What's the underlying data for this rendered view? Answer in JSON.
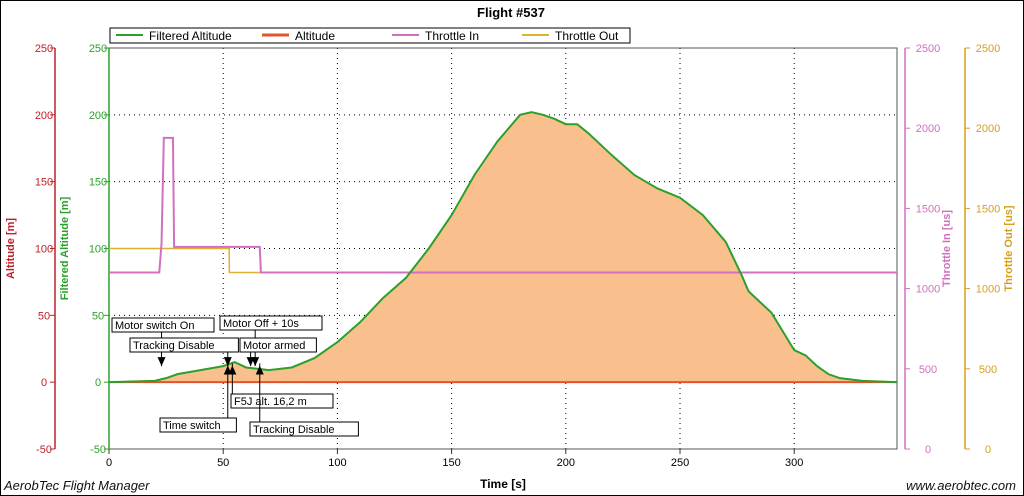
{
  "footer": {
    "left": "AerobTec Flight Manager",
    "right": "www.aerobtec.com"
  },
  "chart_data": {
    "type": "line",
    "title": "Flight #537",
    "xlabel": "Time [s]",
    "xlim": [
      0,
      345
    ],
    "xticks": [
      0,
      50,
      100,
      150,
      200,
      250,
      300
    ],
    "grid": true,
    "legend": {
      "placement": "top",
      "entries": [
        {
          "name": "Filtered Altitude",
          "color": "#2ca02c"
        },
        {
          "name": "Altitude",
          "color": "#e2542b"
        },
        {
          "name": "Throttle In",
          "color": "#d070c0"
        },
        {
          "name": "Throttle Out",
          "color": "#e0b030"
        }
      ]
    },
    "axes": [
      {
        "label": "Altitude [m]",
        "color": "#c0202a",
        "range": [
          -50,
          250
        ],
        "ticks": [
          -50,
          0,
          50,
          100,
          150,
          200,
          250
        ]
      },
      {
        "label": "Filtered Altitude [m]",
        "color": "#2ca02c",
        "range": [
          -50,
          250
        ],
        "ticks": [
          -50,
          0,
          50,
          100,
          150,
          200,
          250
        ]
      },
      {
        "label": "Throttle In [us]",
        "color": "#d070c0",
        "range": [
          0,
          2500
        ],
        "ticks": [
          0,
          500,
          1000,
          1500,
          2000,
          2500
        ]
      },
      {
        "label": "Throttle Out [us]",
        "color": "#d4a020",
        "range": [
          0,
          2500
        ],
        "ticks": [
          0,
          500,
          1000,
          1500,
          2000,
          2500
        ]
      }
    ],
    "series": [
      {
        "name": "Filtered Altitude",
        "x": [
          0,
          20,
          25,
          30,
          40,
          50,
          55,
          60,
          65,
          70,
          80,
          90,
          100,
          110,
          120,
          130,
          140,
          150,
          160,
          170,
          180,
          185,
          190,
          195,
          200,
          205,
          210,
          220,
          230,
          240,
          250,
          260,
          270,
          277,
          280,
          285,
          290,
          295,
          300,
          305,
          310,
          315,
          320,
          330,
          345
        ],
        "y": [
          0,
          1,
          3,
          6,
          9,
          12,
          15,
          11,
          10,
          9,
          11,
          18,
          30,
          45,
          63,
          78,
          100,
          125,
          155,
          180,
          200,
          202,
          200,
          197,
          193,
          193,
          186,
          170,
          155,
          145,
          138,
          125,
          105,
          80,
          68,
          60,
          52,
          38,
          24,
          20,
          12,
          6,
          3,
          1,
          0
        ]
      },
      {
        "name": "Altitude",
        "x": [
          0,
          345
        ],
        "y": [
          0,
          0
        ]
      },
      {
        "name": "Throttle In",
        "x": [
          0,
          22,
          23,
          24,
          28,
          28.5,
          66,
          66.5,
          345
        ],
        "y": [
          1100,
          1100,
          1280,
          1940,
          1940,
          1260,
          1260,
          1100,
          1100
        ]
      },
      {
        "name": "Throttle Out",
        "x": [
          0,
          52.6,
          52.7,
          66,
          66.5,
          345
        ],
        "y": [
          1250,
          1250,
          1100,
          1100,
          1100,
          1100
        ]
      }
    ],
    "annotations": [
      {
        "label": "Motor switch On",
        "t": 23,
        "dir": "down"
      },
      {
        "label": "Motor Off + 10s",
        "t": 64,
        "dir": "down"
      },
      {
        "label": "Motor armed",
        "t": 62,
        "dir": "down"
      },
      {
        "label": "Tracking Disable",
        "t": 52,
        "dir": "down"
      },
      {
        "label": "F5J alt. 16,2 m",
        "t": 54,
        "dir": "up"
      },
      {
        "label": "Tracking Disable",
        "t": 66,
        "dir": "up"
      },
      {
        "label": "Time switch",
        "t": 52,
        "dir": "up"
      }
    ]
  }
}
